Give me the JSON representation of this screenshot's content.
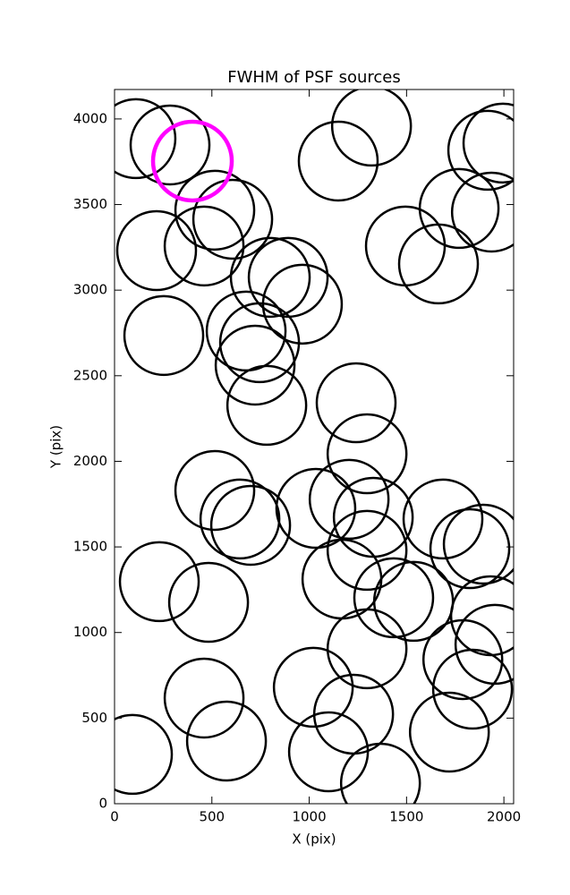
{
  "chart_data": {
    "type": "scatter",
    "title": "FWHM of PSF sources",
    "x_label": "X (pix)",
    "y_label": "Y (pix)",
    "xlim": [
      0,
      2050
    ],
    "ylim": [
      0,
      4172
    ],
    "xticks": [
      0,
      500,
      1000,
      1500,
      2000
    ],
    "yticks": [
      0,
      500,
      1000,
      1500,
      2000,
      2500,
      3000,
      3500,
      4000
    ],
    "series": [
      {
        "color": "#000000",
        "x": [
          110,
          285,
          1320,
          1149,
          1917,
          1995,
          1770,
          1936,
          515,
          607,
          216,
          460,
          1494,
          1664,
          800,
          892,
          965,
          253,
          676,
          745,
          722,
          782,
          1241,
          1297,
          515,
          644,
          699,
          1034,
          1205,
          1329,
          1687,
          1894,
          1825,
          1297,
          1168,
          1434,
          1536,
          1931,
          1954,
          1297,
          1789,
          1839,
          1720,
          1021,
          1228,
          1099,
          1366,
          230,
          483,
          460,
          575,
          92
        ],
        "values": [
          3885,
          3848,
          3958,
          3754,
          3817,
          3859,
          3477,
          3456,
          3467,
          3414,
          3231,
          3258,
          3258,
          3153,
          3075,
          3075,
          2918,
          2735,
          2761,
          2693,
          2562,
          2327,
          2342,
          2044,
          1830,
          1663,
          1626,
          1725,
          1778,
          1673,
          1663,
          1516,
          1490,
          1480,
          1312,
          1203,
          1182,
          1098,
          931,
          905,
          842,
          669,
          418,
          680,
          523,
          303,
          120,
          1297,
          1176,
          617,
          366,
          288
        ]
      },
      {
        "color": "#ff00ff",
        "x": [
          400
        ],
        "values": [
          3754
        ]
      }
    ]
  }
}
